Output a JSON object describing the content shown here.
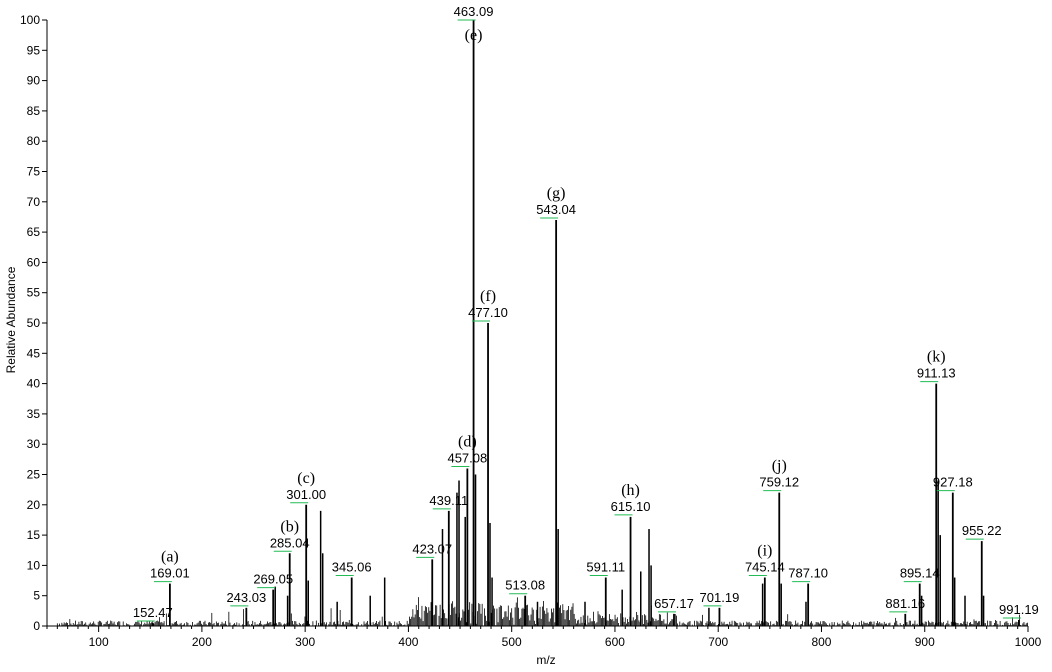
{
  "chart_data": {
    "type": "bar",
    "title": "",
    "xlabel": "m/z",
    "ylabel": "Relative Abundance",
    "xlim": [
      50,
      1000
    ],
    "ylim": [
      0,
      100
    ],
    "x_ticks": [
      100,
      200,
      300,
      400,
      500,
      600,
      700,
      800,
      900,
      1000
    ],
    "y_ticks": [
      0,
      5,
      10,
      15,
      20,
      25,
      30,
      35,
      40,
      45,
      50,
      55,
      60,
      65,
      70,
      75,
      80,
      85,
      90,
      95,
      100
    ],
    "colors": {
      "peaks": "#000000",
      "leader": "#22bb55",
      "axis": "#000000"
    },
    "labeled_peaks": [
      {
        "mz": 152.47,
        "abundance": 0.5,
        "label": "152.47",
        "letter": ""
      },
      {
        "mz": 169.01,
        "abundance": 7,
        "label": "169.01",
        "letter": "(a)"
      },
      {
        "mz": 243.03,
        "abundance": 3,
        "label": "243.03",
        "letter": ""
      },
      {
        "mz": 269.05,
        "abundance": 6,
        "label": "269.05",
        "letter": ""
      },
      {
        "mz": 285.04,
        "abundance": 12,
        "label": "285.04",
        "letter": "(b)"
      },
      {
        "mz": 301.0,
        "abundance": 20,
        "label": "301.00",
        "letter": "(c)"
      },
      {
        "mz": 345.06,
        "abundance": 8,
        "label": "345.06",
        "letter": ""
      },
      {
        "mz": 423.07,
        "abundance": 11,
        "label": "423.07",
        "letter": ""
      },
      {
        "mz": 439.11,
        "abundance": 19,
        "label": "439.11",
        "letter": ""
      },
      {
        "mz": 457.08,
        "abundance": 26,
        "label": "457.08",
        "letter": "(d)"
      },
      {
        "mz": 463.09,
        "abundance": 100,
        "label": "463.09",
        "letter": "(e)"
      },
      {
        "mz": 477.1,
        "abundance": 50,
        "label": "477.10",
        "letter": "(f)"
      },
      {
        "mz": 513.08,
        "abundance": 5,
        "label": "513.08",
        "letter": ""
      },
      {
        "mz": 543.04,
        "abundance": 67,
        "label": "543.04",
        "letter": "(g)"
      },
      {
        "mz": 591.11,
        "abundance": 8,
        "label": "591.11",
        "letter": ""
      },
      {
        "mz": 615.1,
        "abundance": 18,
        "label": "615.10",
        "letter": "(h)"
      },
      {
        "mz": 657.17,
        "abundance": 2,
        "label": "657.17",
        "letter": ""
      },
      {
        "mz": 701.19,
        "abundance": 3,
        "label": "701.19",
        "letter": ""
      },
      {
        "mz": 745.14,
        "abundance": 8,
        "label": "745.14",
        "letter": "(i)"
      },
      {
        "mz": 759.12,
        "abundance": 22,
        "label": "759.12",
        "letter": "(j)"
      },
      {
        "mz": 787.1,
        "abundance": 7,
        "label": "787.10",
        "letter": ""
      },
      {
        "mz": 881.16,
        "abundance": 2,
        "label": "881.16",
        "letter": ""
      },
      {
        "mz": 895.14,
        "abundance": 7,
        "label": "895.14",
        "letter": ""
      },
      {
        "mz": 911.13,
        "abundance": 40,
        "label": "911.13",
        "letter": "(k)"
      },
      {
        "mz": 927.18,
        "abundance": 22,
        "label": "927.18",
        "letter": ""
      },
      {
        "mz": 955.22,
        "abundance": 14,
        "label": "955.22",
        "letter": ""
      },
      {
        "mz": 991.19,
        "abundance": 1,
        "label": "991.19",
        "letter": ""
      }
    ],
    "unlabeled_peaks": [
      {
        "mz": 271,
        "abundance": 6.5
      },
      {
        "mz": 283,
        "abundance": 5
      },
      {
        "mz": 303,
        "abundance": 7.5
      },
      {
        "mz": 315,
        "abundance": 19
      },
      {
        "mz": 317,
        "abundance": 12
      },
      {
        "mz": 331,
        "abundance": 4
      },
      {
        "mz": 363,
        "abundance": 5
      },
      {
        "mz": 377,
        "abundance": 8
      },
      {
        "mz": 433,
        "abundance": 16
      },
      {
        "mz": 447,
        "abundance": 22
      },
      {
        "mz": 449,
        "abundance": 24
      },
      {
        "mz": 455,
        "abundance": 18
      },
      {
        "mz": 465,
        "abundance": 25
      },
      {
        "mz": 479,
        "abundance": 17
      },
      {
        "mz": 481,
        "abundance": 8
      },
      {
        "mz": 525,
        "abundance": 4
      },
      {
        "mz": 545,
        "abundance": 16
      },
      {
        "mz": 571,
        "abundance": 4
      },
      {
        "mz": 607,
        "abundance": 6
      },
      {
        "mz": 625,
        "abundance": 9
      },
      {
        "mz": 633,
        "abundance": 16
      },
      {
        "mz": 635,
        "abundance": 10
      },
      {
        "mz": 691,
        "abundance": 3
      },
      {
        "mz": 743,
        "abundance": 7
      },
      {
        "mz": 761,
        "abundance": 7
      },
      {
        "mz": 785,
        "abundance": 4
      },
      {
        "mz": 897,
        "abundance": 5
      },
      {
        "mz": 913,
        "abundance": 24
      },
      {
        "mz": 915,
        "abundance": 15
      },
      {
        "mz": 929,
        "abundance": 8
      },
      {
        "mz": 939,
        "abundance": 5
      },
      {
        "mz": 957,
        "abundance": 5
      }
    ]
  }
}
